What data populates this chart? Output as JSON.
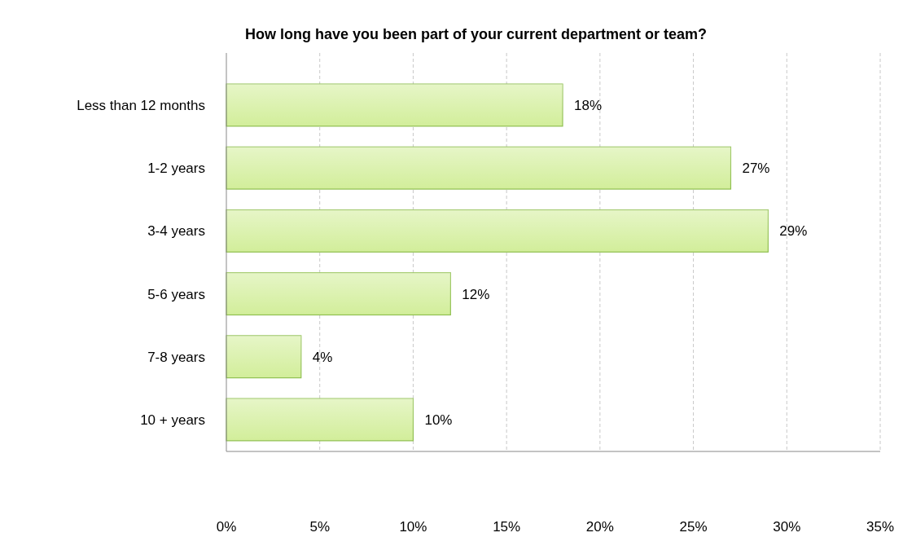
{
  "chart_data": {
    "type": "bar",
    "orientation": "horizontal",
    "title": "How long have you been part of your current department or team?",
    "categories": [
      "Less than 12 months",
      "1-2 years",
      "3-4 years",
      "5-6 years",
      "7-8 years",
      "10 + years"
    ],
    "values": [
      18,
      27,
      29,
      12,
      4,
      10
    ],
    "value_labels": [
      "18%",
      "27%",
      "29%",
      "12%",
      "4%",
      "10%"
    ],
    "color": "#d2ee9a",
    "xlim": [
      0,
      35
    ],
    "xticks": [
      {
        "value": 0,
        "label": "0%"
      },
      {
        "value": 5,
        "label": "5%"
      },
      {
        "value": 10,
        "label": "10%"
      },
      {
        "value": 15,
        "label": "15%"
      },
      {
        "value": 20,
        "label": "20%"
      },
      {
        "value": 25,
        "label": "25%"
      },
      {
        "value": 30,
        "label": "30%"
      },
      {
        "value": 35,
        "label": "35%"
      }
    ],
    "grid": "x"
  }
}
